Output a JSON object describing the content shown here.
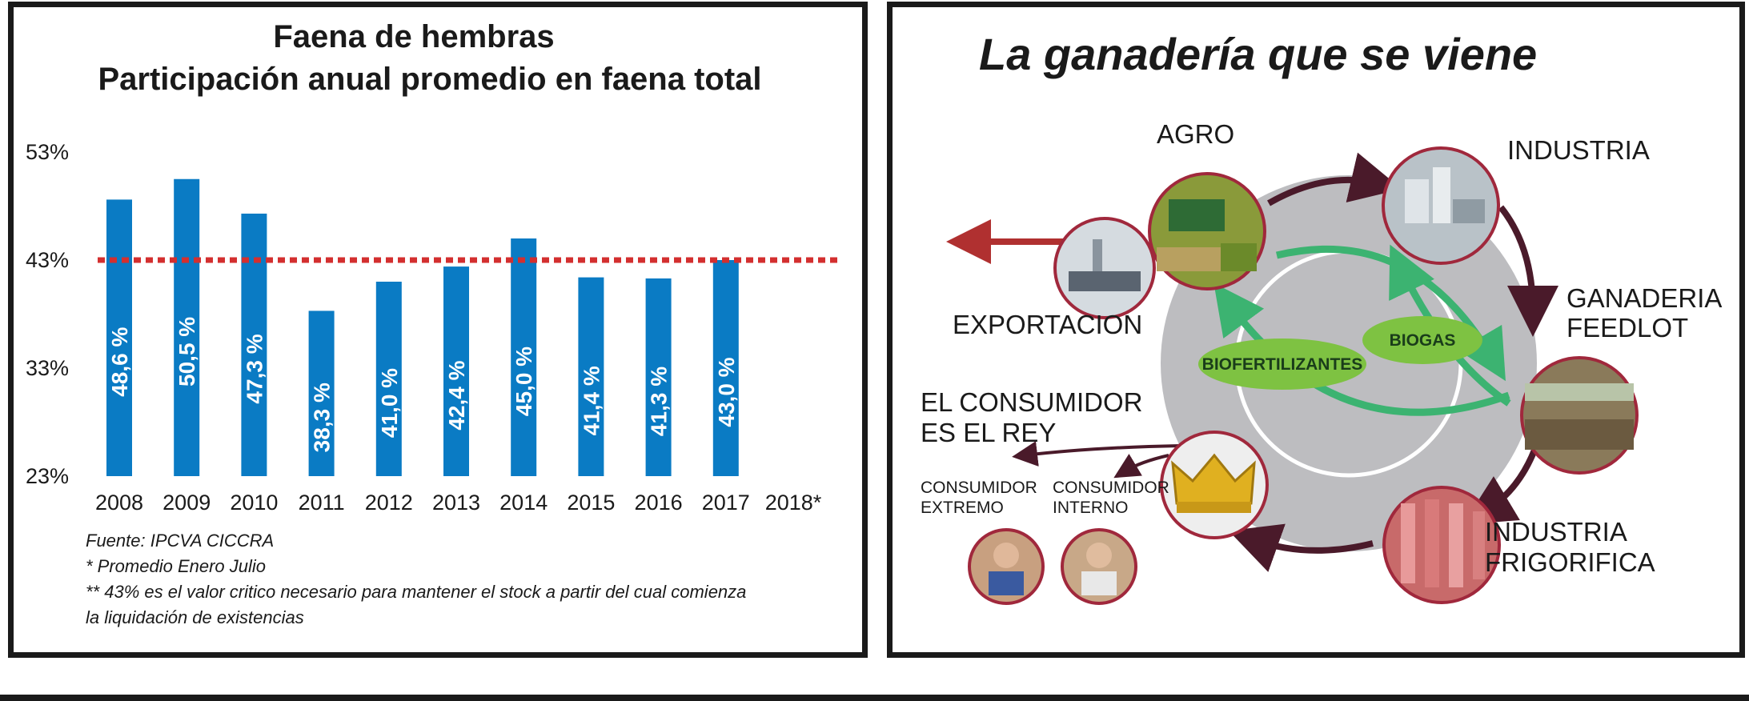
{
  "chart_data": {
    "type": "bar",
    "title": "Faena de hembras",
    "subtitle": "Participación anual promedio en faena total",
    "categories": [
      "2008",
      "2009",
      "2010",
      "2011",
      "2012",
      "2013",
      "2014",
      "2015",
      "2016",
      "2017",
      "2018*"
    ],
    "values": [
      48.6,
      50.5,
      47.3,
      38.3,
      41.0,
      42.4,
      45.0,
      41.4,
      41.3,
      43.0,
      null
    ],
    "value_labels": [
      "48,6 %",
      "50,5 %",
      "47,3 %",
      "38,3 %",
      "41,0 %",
      "42,4 %",
      "45,0 %",
      "41,4 %",
      "41,3 %",
      "43,0 %",
      ""
    ],
    "y_ticks": [
      "53%",
      "43%",
      "33%",
      "23%"
    ],
    "y_tick_values": [
      53,
      43,
      33,
      23
    ],
    "ylim": [
      23,
      53
    ],
    "reference_line": {
      "value": 43,
      "color": "#d32f2f",
      "style": "dotted"
    },
    "bar_color": "#0a7bc4",
    "grid": false,
    "legend": "none"
  },
  "notes": [
    "Fuente: IPCVA CICCRA",
    "* Promedio Enero Julio",
    "** 43% es el valor critico necesario para mantener el stock a partir del cual comienza",
    "la liquidación de existencias"
  ],
  "diagram": {
    "title": "La ganadería que se viene",
    "nodes": {
      "agro": "AGRO",
      "industria": "INDUSTRIA",
      "ganaderia_1": "GANADERIA",
      "ganaderia_2": "FEEDLOT",
      "frigorifica_1": "INDUSTRIA",
      "frigorifica_2": "FRIGORIFICA",
      "exportacion": "EXPORTACION",
      "consumidor_1": "EL CONSUMIDOR",
      "consumidor_2": "ES EL REY",
      "extremo_1": "CONSUMIDOR",
      "extremo_2": "EXTREMO",
      "interno_1": "CONSUMIDOR",
      "interno_2": "INTERNO"
    },
    "ovals": {
      "biofertilizantes": "BIOFERTILIZANTES",
      "biogas": "BIOGAS"
    },
    "colors": {
      "ring": "#bdbdc0",
      "arrow_dark": "#4a1a2a",
      "arrow_green": "#3cb371",
      "oval": "#7ec242",
      "circle_border": "#a0283c",
      "export_arrow": "#b03030"
    }
  }
}
